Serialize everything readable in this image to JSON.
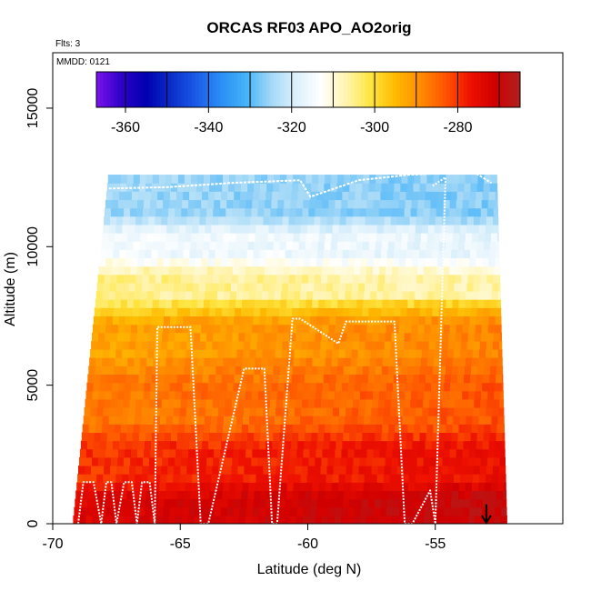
{
  "chart_data": {
    "type": "heatmap",
    "title": "ORCAS RF03 APO_AO2orig",
    "annotations": {
      "flights": "Flts: 3",
      "date": "MMDD: 0121"
    },
    "xlabel": "Latitude (deg N)",
    "ylabel": "Altitude (m)",
    "xlim": [
      -70,
      -50
    ],
    "ylim": [
      0,
      17000
    ],
    "xticks": [
      -70,
      -65,
      -60,
      -55
    ],
    "yticks": [
      0,
      5000,
      10000,
      15000
    ],
    "colorbar": {
      "range": [
        -367,
        -265
      ],
      "ticks": [
        -360,
        -340,
        -320,
        -300,
        -280
      ],
      "colors": [
        "#7a13ee",
        "#2e00c8",
        "#0000b0",
        "#0a2ec8",
        "#1b5be8",
        "#2b8ef5",
        "#45b2f8",
        "#a2d8f7",
        "#dcf0fb",
        "#ffffff",
        "#fff4b0",
        "#ffe540",
        "#ffba00",
        "#ff8c00",
        "#ff5500",
        "#ee1000",
        "#d00000",
        "#b02020"
      ]
    },
    "data_extent": {
      "bottom_lat_range": [
        -69.2,
        -52.2
      ],
      "top_lat_range": [
        -67.8,
        -52.6
      ],
      "alt_range": [
        0,
        12600
      ]
    },
    "colormap_bands_by_altitude": [
      {
        "alt": [
          0,
          1500
        ],
        "approx_value": -273
      },
      {
        "alt": [
          1500,
          3500
        ],
        "approx_value": -280
      },
      {
        "alt": [
          3500,
          6000
        ],
        "approx_value": -287
      },
      {
        "alt": [
          6000,
          8000
        ],
        "approx_value": -292
      },
      {
        "alt": [
          8000,
          9500
        ],
        "approx_value": -305
      },
      {
        "alt": [
          9500,
          11000
        ],
        "approx_value": -315
      },
      {
        "alt": [
          11000,
          12600
        ],
        "approx_value": -325
      }
    ],
    "flight_track": {
      "lat": [
        -69.0,
        -68.8,
        -68.4,
        -68.1,
        -67.9,
        -67.7,
        -67.5,
        -67.2,
        -66.9,
        -66.7,
        -66.5,
        -66.2,
        -66.0,
        -65.9,
        -64.6,
        -64.2,
        -63.9,
        -62.5,
        -61.7,
        -61.4,
        -61.2,
        -60.6,
        -60.5,
        -60.3,
        -58.8,
        -58.5,
        -56.6,
        -56.2,
        -55.9,
        -55.2,
        -55.0,
        -54.6,
        -55.1
      ],
      "alt": [
        0,
        1500,
        1500,
        0,
        1500,
        1500,
        0,
        1500,
        1500,
        0,
        1500,
        1500,
        0,
        7100,
        7100,
        0,
        0,
        5600,
        5600,
        0,
        0,
        7400,
        7400,
        7400,
        6500,
        7300,
        7300,
        0,
        0,
        1200,
        0,
        12500,
        12200
      ],
      "high_leg": {
        "lat": [
          -67.8,
          -65.5,
          -63.0,
          -60.3,
          -59.9,
          -58.0,
          -56.0,
          -53.5,
          -52.8
        ],
        "alt": [
          12100,
          12150,
          12300,
          12400,
          11800,
          12400,
          12600,
          12700,
          12300
        ]
      }
    },
    "arrow_marker": {
      "lat": -53.0,
      "alt_top": 700,
      "alt_bottom": 0
    },
    "grid": false,
    "legend": "none"
  }
}
